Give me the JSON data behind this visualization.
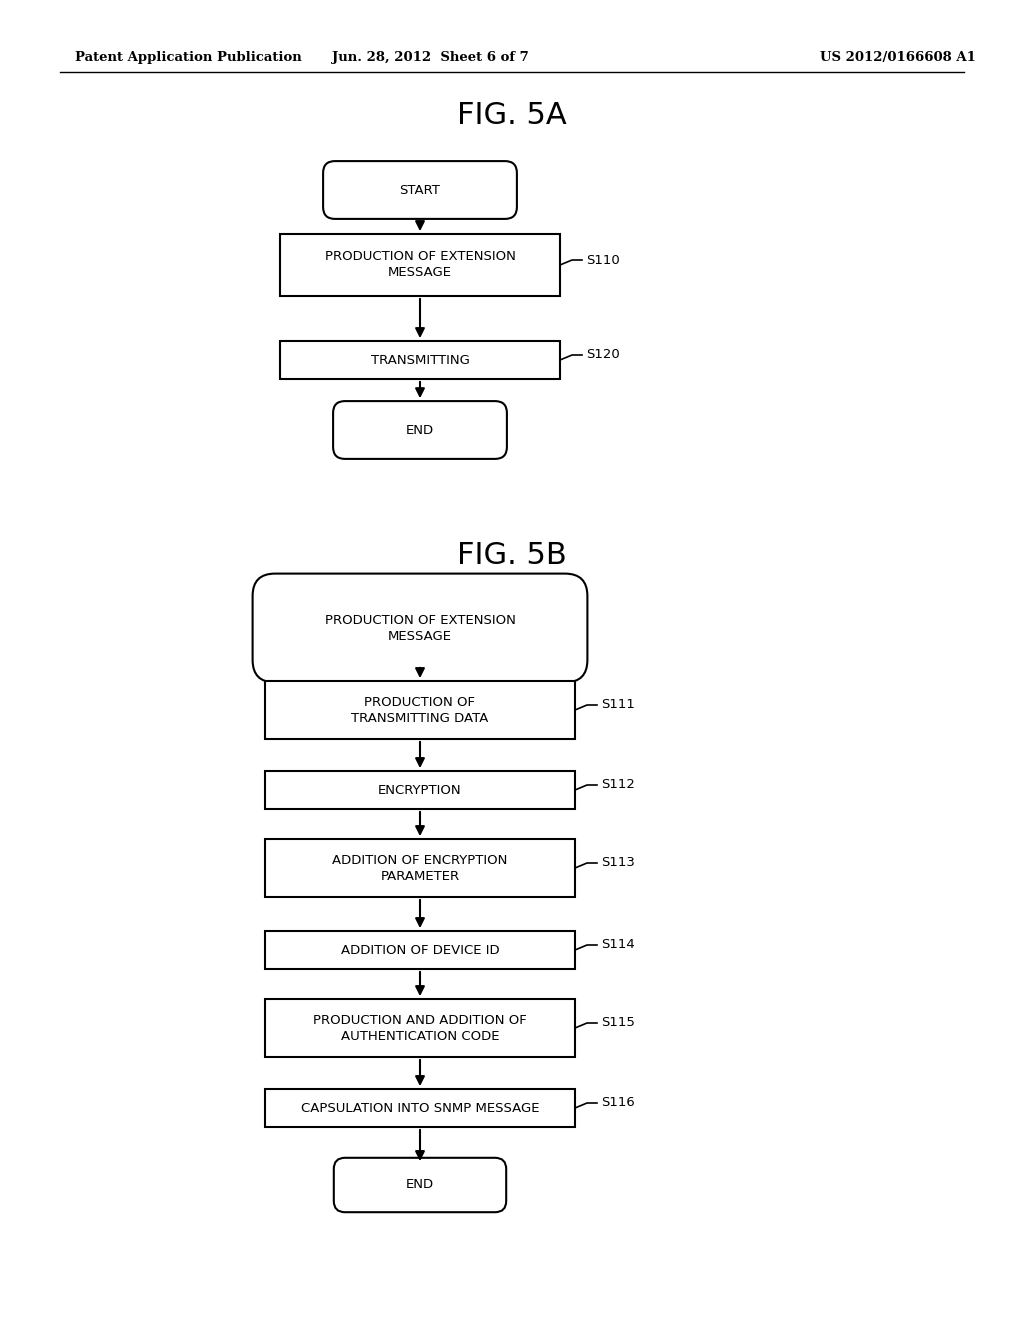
{
  "bg_color": "#ffffff",
  "text_color": "#000000",
  "header_left": "Patent Application Publication",
  "header_center": "Jun. 28, 2012  Sheet 6 of 7",
  "header_right": "US 2012/0166608 A1",
  "fig5a_title": "FIG. 5A",
  "fig5b_title": "FIG. 5B",
  "line_color": "#000000",
  "box_edge_color": "#000000",
  "box_face_color": "#ffffff"
}
